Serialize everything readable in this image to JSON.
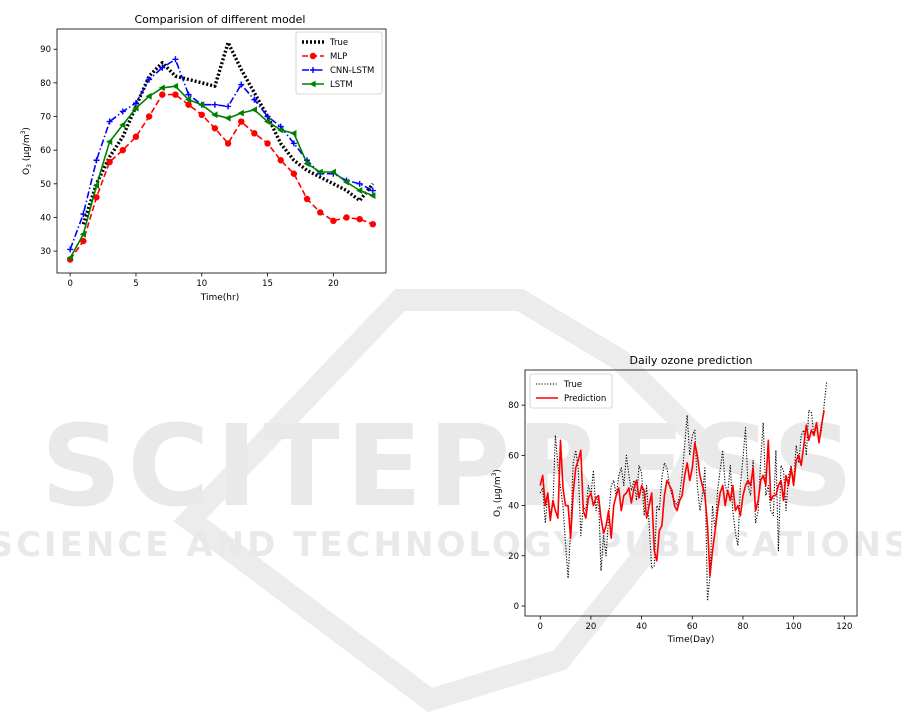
{
  "watermark": {
    "line1": "SCITEPRESS",
    "line2": "SCIENCE AND TECHNOLOGY PUBLICATIONS",
    "color": "#e6e6e6"
  },
  "chart_data": [
    {
      "type": "line",
      "title": "Comparision of different model",
      "xlabel": "Time(hr)",
      "ylabel": "O3 (μg/m3)",
      "ylabel_main": "O",
      "ylabel_sub": "3",
      "ylabel_unit": " (μg/m",
      "ylabel_sup": "3",
      "ylabel_close": ")",
      "xlim": [
        -1,
        24
      ],
      "ylim": [
        23.5,
        96
      ],
      "xticks": [
        0,
        5,
        10,
        15,
        20
      ],
      "yticks": [
        30,
        40,
        50,
        60,
        70,
        80,
        90
      ],
      "legend_position": "top-right",
      "x": [
        0,
        1,
        2,
        3,
        4,
        5,
        6,
        7,
        8,
        9,
        10,
        11,
        12,
        13,
        14,
        15,
        16,
        17,
        18,
        19,
        20,
        21,
        22,
        23
      ],
      "series": [
        {
          "name": "True",
          "color": "#000000",
          "style": "dotted-thick",
          "marker": "none",
          "values": [
            null,
            38,
            50,
            58,
            64,
            73,
            82,
            86,
            82,
            81,
            80,
            79,
            92,
            84,
            77,
            70,
            62,
            57,
            54,
            52,
            50,
            48,
            45,
            50
          ]
        },
        {
          "name": "MLP",
          "color": "#ff0000",
          "style": "dashed",
          "marker": "circle",
          "values": [
            27.5,
            33,
            46,
            56.5,
            60,
            64,
            70,
            76.5,
            76.5,
            73.5,
            70.5,
            66.5,
            62,
            68.5,
            65,
            62,
            57,
            53,
            45.5,
            41.5,
            39,
            40,
            39.5,
            38
          ]
        },
        {
          "name": "CNN-LSTM",
          "color": "#0000ff",
          "style": "dashdot",
          "marker": "plus",
          "values": [
            30.5,
            41,
            57,
            68.5,
            71.5,
            74,
            81,
            84.5,
            87,
            76.5,
            73.5,
            73.5,
            73,
            79.5,
            75,
            70,
            67,
            62,
            57,
            53,
            53,
            51,
            50,
            48
          ]
        },
        {
          "name": "LSTM",
          "color": "#008000",
          "style": "solid",
          "marker": "triangle-left",
          "values": [
            28,
            35,
            49.5,
            62.5,
            67.5,
            72.5,
            76,
            78.5,
            79,
            75,
            73.5,
            70.5,
            69.5,
            71,
            72,
            68.5,
            66,
            65,
            56,
            53.5,
            53.5,
            50.5,
            48,
            46.5
          ]
        }
      ]
    },
    {
      "type": "line",
      "title": "Daily ozone prediction",
      "xlabel": "Time(Day)",
      "ylabel": "O3 (μg/m3)",
      "ylabel_main": "O",
      "ylabel_sub": "3",
      "ylabel_unit": " (μg/m",
      "ylabel_sup": "3",
      "ylabel_close": ")",
      "xlim": [
        -6,
        125
      ],
      "ylim": [
        -4,
        94
      ],
      "xticks": [
        0,
        20,
        40,
        60,
        80,
        100,
        120
      ],
      "yticks": [
        0,
        20,
        40,
        60,
        80
      ],
      "legend_position": "top-left",
      "x_start": 0,
      "series": [
        {
          "name": "True",
          "color": "#000000",
          "style": "dotted",
          "values": [
            45,
            47,
            33,
            45,
            37,
            40,
            68,
            56,
            47,
            40,
            25,
            11,
            30,
            57,
            62,
            55,
            28,
            40,
            38,
            48,
            44,
            54,
            38,
            44,
            14,
            28,
            20,
            35,
            48,
            50,
            44,
            52,
            55,
            48,
            60,
            52,
            46,
            50,
            42,
            56,
            53,
            36,
            48,
            32,
            15,
            16,
            40,
            38,
            51,
            57,
            55,
            48,
            44,
            42,
            40,
            44,
            52,
            64,
            76,
            60,
            68,
            70,
            48,
            38,
            44,
            55,
            2,
            12,
            40,
            30,
            46,
            54,
            62,
            48,
            45,
            56,
            38,
            29,
            24,
            48,
            59,
            71,
            48,
            44,
            58,
            33,
            38,
            58,
            73,
            44,
            48,
            38,
            36,
            62,
            22,
            56,
            54,
            38,
            52,
            56,
            50,
            64,
            57,
            68,
            70,
            60,
            78,
            77,
            68,
            72,
            66,
            70,
            80,
            89
          ]
        },
        {
          "name": "Prediction",
          "color": "#ff0000",
          "style": "solid",
          "values": [
            48,
            52,
            40,
            45,
            34,
            42,
            38,
            35,
            66,
            47,
            40,
            40,
            27,
            45,
            55,
            58,
            62,
            38,
            35,
            43,
            45,
            40,
            43,
            44,
            35,
            29,
            32,
            38,
            27,
            40,
            44,
            47,
            38,
            44,
            45,
            47,
            41,
            47,
            50,
            43,
            48,
            46,
            35,
            40,
            45,
            22,
            18,
            30,
            32,
            44,
            50,
            48,
            46,
            40,
            38,
            42,
            44,
            52,
            57,
            50,
            55,
            65,
            60,
            52,
            48,
            44,
            32,
            12,
            22,
            30,
            38,
            45,
            48,
            40,
            46,
            42,
            48,
            38,
            40,
            36,
            44,
            48,
            50,
            48,
            55,
            38,
            42,
            50,
            52,
            48,
            66,
            42,
            44,
            44,
            48,
            50,
            42,
            52,
            48,
            55,
            48,
            58,
            60,
            56,
            64,
            72,
            66,
            70,
            68,
            73,
            65,
            72,
            78
          ]
        }
      ]
    }
  ]
}
